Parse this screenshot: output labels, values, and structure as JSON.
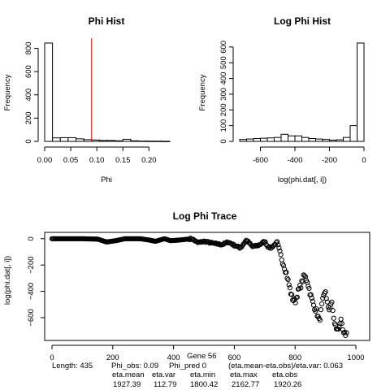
{
  "chart_data": [
    {
      "type": "bar",
      "title": "Phi Hist",
      "xlabel": "Phi",
      "ylabel": "Frequency",
      "bin_edges": [
        0,
        0.015,
        0.03,
        0.045,
        0.06,
        0.075,
        0.09,
        0.105,
        0.12,
        0.135,
        0.15,
        0.165,
        0.18,
        0.195,
        0.21,
        0.225,
        0.24
      ],
      "values": [
        845,
        30,
        32,
        32,
        22,
        15,
        12,
        8,
        8,
        5,
        18,
        5,
        3,
        2,
        2,
        1
      ],
      "xlim": [
        0,
        0.24
      ],
      "ylim": [
        0,
        845
      ],
      "x_ticks": [
        0.0,
        0.05,
        0.1,
        0.15,
        0.2
      ],
      "x_tick_labels": [
        "0.00",
        "0.05",
        "0.10",
        "0.15",
        "0.20"
      ],
      "y_ticks": [
        0,
        200,
        400,
        600,
        800
      ],
      "vline": 0.09,
      "vline_color": "#ff0000"
    },
    {
      "type": "bar",
      "title": "Log Phi Hist",
      "xlabel": "log(phi.dat[, i])",
      "ylabel": "Frequency",
      "bin_edges": [
        -720,
        -680,
        -640,
        -600,
        -560,
        -520,
        -480,
        -440,
        -400,
        -360,
        -320,
        -280,
        -240,
        -200,
        -160,
        -120,
        -80,
        -40,
        0
      ],
      "values": [
        12,
        15,
        18,
        20,
        22,
        25,
        45,
        35,
        35,
        25,
        18,
        15,
        12,
        8,
        10,
        25,
        100,
        625
      ],
      "xlim": [
        -720,
        0
      ],
      "ylim": [
        0,
        625
      ],
      "x_ticks": [
        -600,
        -400,
        -200,
        0
      ],
      "x_tick_labels": [
        "-600",
        "-400",
        "-200",
        "0"
      ],
      "y_ticks": [
        0,
        100,
        200,
        300,
        400,
        500,
        600
      ]
    },
    {
      "type": "scatter",
      "title": "Log Phi Trace",
      "xlabel": "",
      "ylabel": "log(phi.dat[, i])",
      "xlim": [
        0,
        1000
      ],
      "ylim": [
        -730,
        5
      ],
      "x_ticks": [
        0,
        200,
        400,
        600,
        800,
        1000
      ],
      "y_ticks": [
        0,
        -200,
        -400,
        -600
      ],
      "anchors": [
        [
          0,
          0
        ],
        [
          100,
          0
        ],
        [
          130,
          -2
        ],
        [
          150,
          -3
        ],
        [
          180,
          -25
        ],
        [
          210,
          -15
        ],
        [
          240,
          0
        ],
        [
          290,
          0
        ],
        [
          320,
          -10
        ],
        [
          340,
          -20
        ],
        [
          370,
          0
        ],
        [
          390,
          -15
        ],
        [
          420,
          -10
        ],
        [
          460,
          0
        ],
        [
          480,
          -30
        ],
        [
          500,
          -20
        ],
        [
          530,
          -35
        ],
        [
          560,
          -45
        ],
        [
          580,
          -25
        ],
        [
          600,
          -50
        ],
        [
          620,
          -70
        ],
        [
          640,
          -10
        ],
        [
          660,
          -60
        ],
        [
          680,
          -50
        ],
        [
          700,
          -20
        ],
        [
          710,
          -60
        ],
        [
          720,
          -70
        ],
        [
          740,
          -30
        ],
        [
          750,
          -110
        ],
        [
          760,
          -180
        ],
        [
          770,
          -250
        ],
        [
          780,
          -350
        ],
        [
          790,
          -450
        ],
        [
          800,
          -480
        ],
        [
          810,
          -400
        ],
        [
          820,
          -350
        ],
        [
          830,
          -280
        ],
        [
          840,
          -320
        ],
        [
          850,
          -420
        ],
        [
          860,
          -500
        ],
        [
          870,
          -550
        ],
        [
          880,
          -630
        ],
        [
          890,
          -480
        ],
        [
          900,
          -400
        ],
        [
          910,
          -550
        ],
        [
          920,
          -480
        ],
        [
          930,
          -650
        ],
        [
          940,
          -700
        ],
        [
          950,
          -620
        ],
        [
          960,
          -730
        ],
        [
          970,
          -720
        ]
      ],
      "stats": {
        "length": "Length: 435",
        "phi_obs": "Phi_obs: 0.09",
        "phi_pred": "Phi_pred 0",
        "gene": "Gene 56",
        "ratio": "(eta.mean-eta.obs)/eta.var: 0.063",
        "eta_mean_label": "eta.mean",
        "eta_var_label": "eta.var",
        "eta_min_label": "eta.min",
        "eta_max_label": "eta.max",
        "eta_obs_label": "eta.obs",
        "eta_mean": "1927.39",
        "eta_var": "112.79",
        "eta_min": "1800.42",
        "eta_max": "2162.77",
        "eta_obs": "1920.26"
      }
    }
  ]
}
